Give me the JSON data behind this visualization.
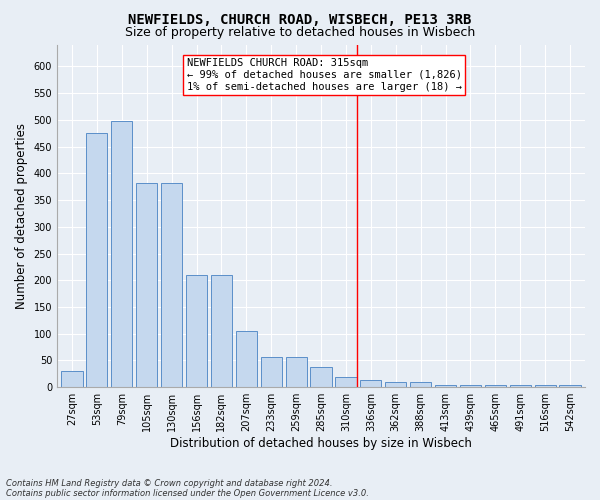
{
  "title": "NEWFIELDS, CHURCH ROAD, WISBECH, PE13 3RB",
  "subtitle": "Size of property relative to detached houses in Wisbech",
  "xlabel": "Distribution of detached houses by size in Wisbech",
  "ylabel": "Number of detached properties",
  "footnote1": "Contains HM Land Registry data © Crown copyright and database right 2024.",
  "footnote2": "Contains public sector information licensed under the Open Government Licence v3.0.",
  "bar_labels": [
    "27sqm",
    "53sqm",
    "79sqm",
    "105sqm",
    "130sqm",
    "156sqm",
    "182sqm",
    "207sqm",
    "233sqm",
    "259sqm",
    "285sqm",
    "310sqm",
    "336sqm",
    "362sqm",
    "388sqm",
    "413sqm",
    "439sqm",
    "465sqm",
    "491sqm",
    "516sqm",
    "542sqm"
  ],
  "bar_values": [
    30,
    475,
    498,
    382,
    382,
    210,
    210,
    105,
    57,
    57,
    38,
    20,
    13,
    10,
    10,
    5,
    5,
    5,
    5,
    5,
    5
  ],
  "bar_color": "#c5d8ee",
  "bar_edgecolor": "#5b8fc9",
  "background_color": "#e8eef5",
  "grid_color": "#ffffff",
  "marker_idx": 11,
  "marker_label": "NEWFIELDS CHURCH ROAD: 315sqm",
  "marker_line_label1": "← 99% of detached houses are smaller (1,826)",
  "marker_line_label2": "1% of semi-detached houses are larger (18) →",
  "ylim": [
    0,
    640
  ],
  "yticks": [
    0,
    50,
    100,
    150,
    200,
    250,
    300,
    350,
    400,
    450,
    500,
    550,
    600
  ],
  "title_fontsize": 10,
  "subtitle_fontsize": 9,
  "xlabel_fontsize": 8.5,
  "ylabel_fontsize": 8.5,
  "tick_fontsize": 7,
  "annotation_fontsize": 7.5
}
